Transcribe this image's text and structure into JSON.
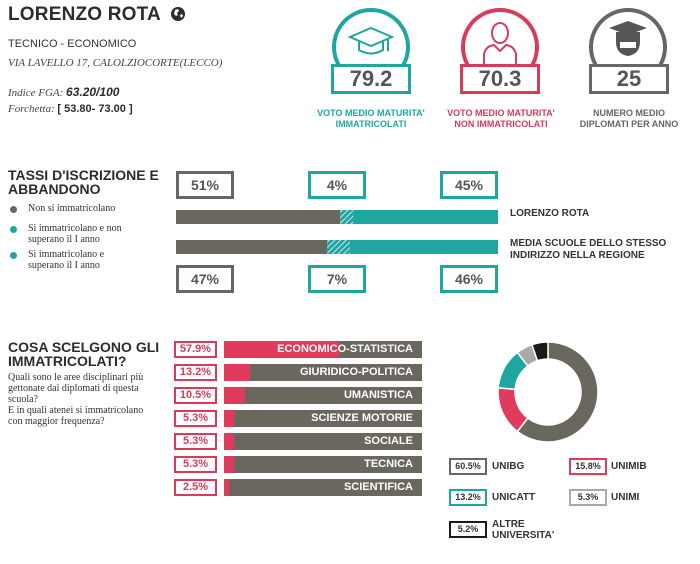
{
  "school": {
    "name": "LORENZO ROTA",
    "type": "TECNICO - ECONOMICO",
    "address": "VIA LAVELLO 17, CALOLZIOCORTE(LECCO)",
    "fga_label": "Indice FGA:",
    "fga_value": "63.20/100",
    "range_label": "Forchetta:",
    "range_value": "[ 53.80- 73.00 ]"
  },
  "stats": [
    {
      "value": "79.2",
      "caption_1": "VOTO MEDIO MATURITA'",
      "caption_2": "IMMATRICOLATI",
      "color": "#1fa6a1",
      "icon": "graduation-cap-icon"
    },
    {
      "value": "70.3",
      "caption_1": "VOTO MEDIO MATURITA'",
      "caption_2": "NON IMMATRICOLATI",
      "color": "#d93a5a",
      "icon": "person-icon"
    },
    {
      "value": "25",
      "caption_1": "NUMERO MEDIO",
      "caption_2": "DIPLOMATI PER ANNO",
      "color": "#666666",
      "icon": "graduate-icon"
    }
  ],
  "enrollment": {
    "title_1": "TASSI D'ISCRIZIONE E",
    "title_2": "ABBANDONO",
    "legend": [
      {
        "text_1": "Non si immatricolano",
        "text_2": "",
        "color": "#666666"
      },
      {
        "text_1": "Si immatricolano e non",
        "text_2": "superano il I anno",
        "color": "#1fa6a1"
      },
      {
        "text_1": "Si immatricolano e",
        "text_2": "superano il I anno",
        "color": "#1fa6a1"
      }
    ],
    "school_row": {
      "label": "LORENZO ROTA",
      "not_enrolled": "51%",
      "dropped": "4%",
      "passed": "45%"
    },
    "region_row": {
      "label_1": "MEDIA SCUOLE DELLO STESSO",
      "label_2": "INDIRIZZO NELLA REGIONE",
      "not_enrolled": "47%",
      "dropped": "7%",
      "passed": "46%"
    },
    "bar_values": {
      "school": [
        51,
        4,
        45
      ],
      "region": [
        47,
        7,
        46
      ]
    }
  },
  "choices": {
    "title_1": "COSA SCELGONO GLI",
    "title_2": "IMMATRICOLATI?",
    "question_1": "Quali sono le aree disciplinari più",
    "question_2": "gettonate dai diplomati di questa",
    "question_3": "scuola?",
    "question_4": "E in quali atenei si immatricolano",
    "question_5": "con maggior frequenza?",
    "areas": [
      {
        "pct": "57.9%",
        "label": "ECONOMICO-STATISTICA",
        "value": 57.9
      },
      {
        "pct": "13.2%",
        "label": "GIURIDICO-POLITICA",
        "value": 13.2
      },
      {
        "pct": "10.5%",
        "label": "UMANISTICA",
        "value": 10.5
      },
      {
        "pct": "5.3%",
        "label": "SCIENZE MOTORIE",
        "value": 5.3
      },
      {
        "pct": "5.3%",
        "label": "SOCIALE",
        "value": 5.3
      },
      {
        "pct": "5.3%",
        "label": "TECNICA",
        "value": 5.3
      },
      {
        "pct": "2.5%",
        "label": "SCIENTIFICA",
        "value": 2.5
      }
    ]
  },
  "chart_data": {
    "type": "pie",
    "categories": [
      "UNIBG",
      "UNIMIB",
      "UNICATT",
      "UNIMI",
      "ALTRE UNIVERSITA'"
    ],
    "values": [
      60.5,
      15.8,
      13.2,
      5.3,
      5.2
    ],
    "labels": [
      "60.5%",
      "15.8%",
      "13.2%",
      "5.3%",
      "5.2%"
    ],
    "colors": [
      "#6a675f",
      "#e03a5c",
      "#1fa6a1",
      "#a9a9a9",
      "#1a1a1a"
    ],
    "other_label_1": "ALTRE",
    "other_label_2": "UNIVERSITA'"
  }
}
